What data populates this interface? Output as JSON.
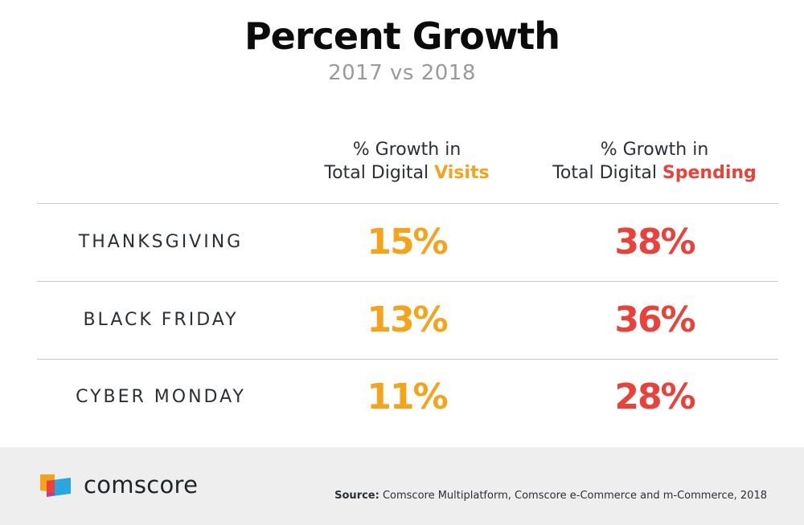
{
  "colors": {
    "visits": "#f5a31a",
    "spending": "#e8423b",
    "title": "#0b0b0b",
    "subtitle": "#9a9a9a",
    "text": "#2b2f36",
    "footer_bg": "#eeeeee"
  },
  "chart_data": {
    "type": "table",
    "title": "Percent Growth",
    "subtitle": "2017 vs 2018",
    "columns": [
      {
        "line1": "% Growth in",
        "line2_prefix": "Total Digital ",
        "line2_highlight": "Visits",
        "color": "#f5a31a"
      },
      {
        "line1": "% Growth in",
        "line2_prefix": "Total Digital ",
        "line2_highlight": "Spending",
        "color": "#e8423b"
      }
    ],
    "rows": [
      {
        "label": "THANKSGIVING",
        "visits": 15,
        "spending": 38,
        "visits_text": "15%",
        "spending_text": "38%"
      },
      {
        "label": "BLACK FRIDAY",
        "visits": 13,
        "spending": 36,
        "visits_text": "13%",
        "spending_text": "36%"
      },
      {
        "label": "CYBER MONDAY",
        "visits": 11,
        "spending": 28,
        "visits_text": "11%",
        "spending_text": "28%"
      }
    ],
    "unit": "%"
  },
  "footer": {
    "logo_text": "comscore",
    "logo_icon": "comscore-logo-icon",
    "source_label": "Source:",
    "source_text": " Comscore Multiplatform, Comscore e-Commerce and m-Commerce, 2018"
  }
}
